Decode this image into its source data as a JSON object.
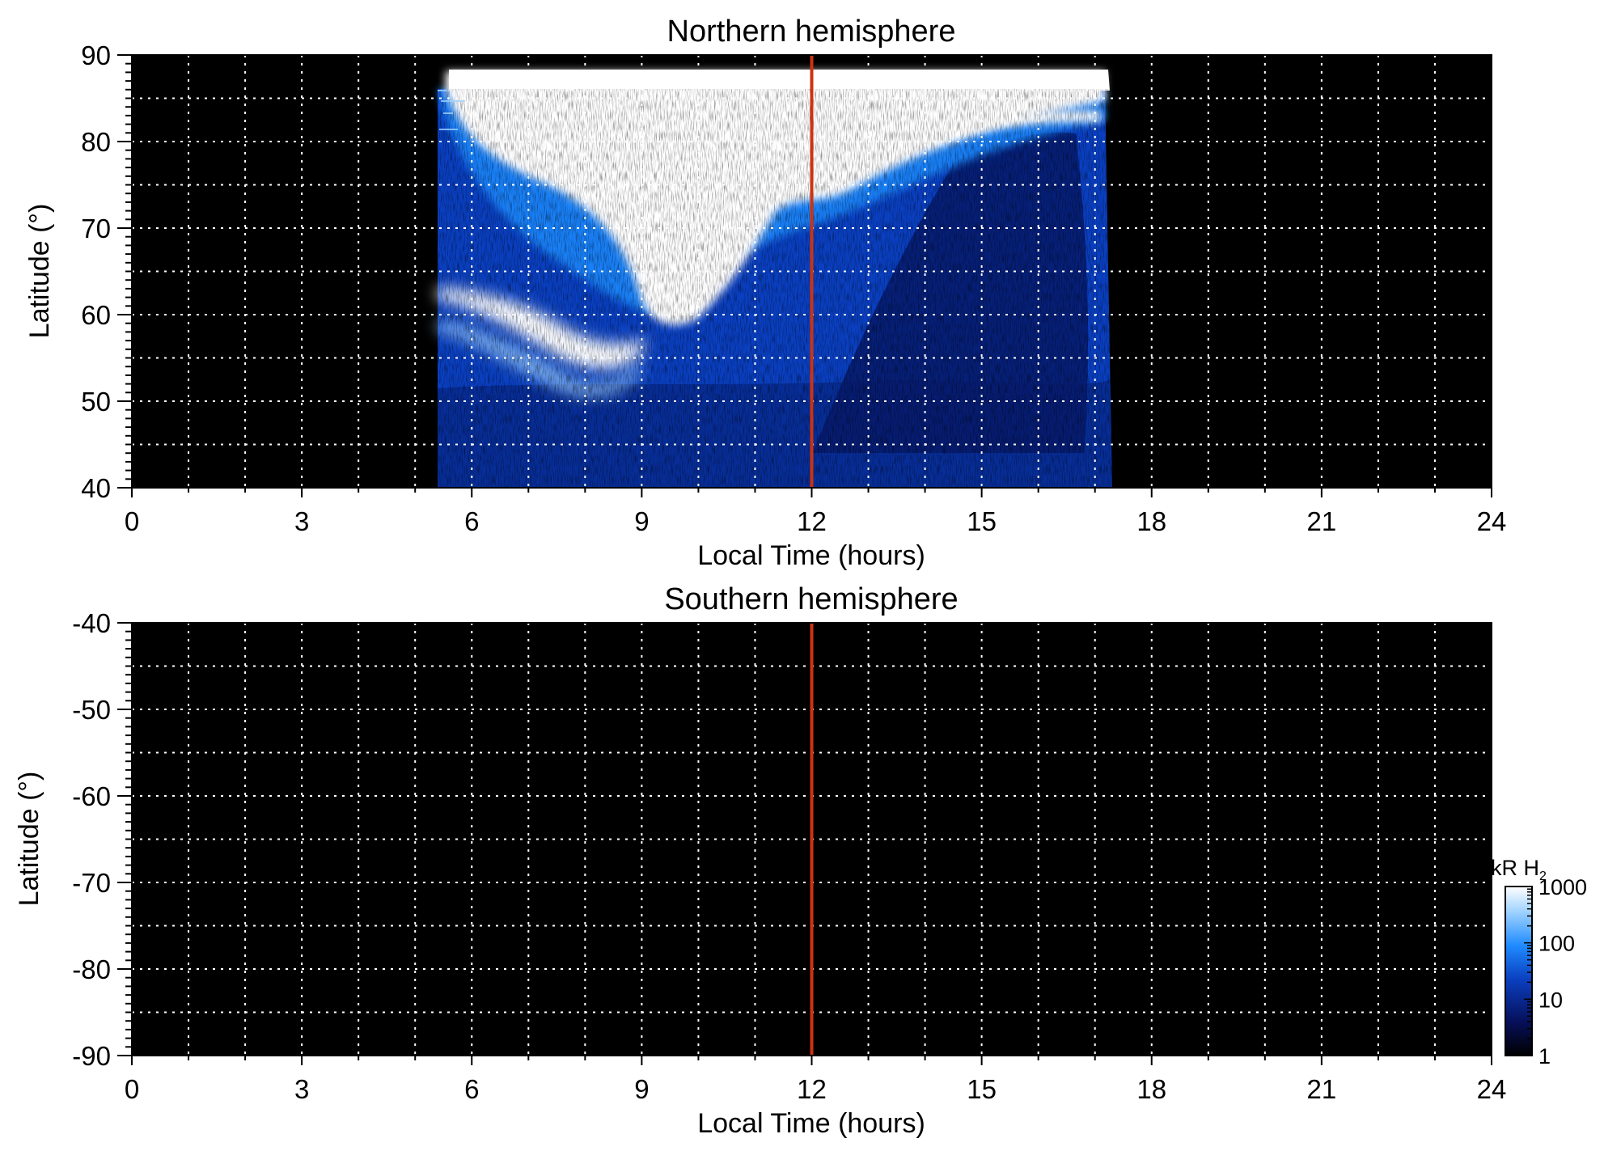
{
  "chart_data": [
    {
      "type": "heatmap",
      "title": "Northern hemisphere",
      "xlabel": "Local Time (hours)",
      "ylabel": "Latitude (°)",
      "xlim": [
        0,
        24
      ],
      "ylim": [
        40,
        90
      ],
      "xticks": [
        "0",
        "3",
        "6",
        "9",
        "12",
        "15",
        "18",
        "21",
        "24"
      ],
      "yticks": [
        "40",
        "50",
        "60",
        "70",
        "80",
        "90"
      ],
      "grid": true,
      "background": "#000000",
      "grid_color": "#ffffff",
      "noon_line": {
        "x": 12,
        "color": "#cc3311"
      },
      "emission_coverage": {
        "local_time_start": 5.4,
        "local_time_end": 17.2,
        "latitude_max": 88
      },
      "features": [
        {
          "name": "saturated polar region",
          "level_kR": 1000,
          "local_time_range": [
            5.4,
            17.2
          ],
          "latitude_range": [
            55,
            88
          ]
        },
        {
          "name": "bright band",
          "level_kR": 1000,
          "local_time_range": [
            5.4,
            9.0
          ],
          "latitude_range": [
            52,
            62
          ]
        },
        {
          "name": "diffuse emission",
          "level_kR": 100,
          "local_time_range": [
            5.4,
            17.2
          ],
          "latitude_range": [
            40,
            75
          ]
        }
      ]
    },
    {
      "type": "heatmap",
      "title": "Southern hemisphere",
      "xlabel": "Local Time (hours)",
      "ylabel": "Latitude (°)",
      "xlim": [
        0,
        24
      ],
      "ylim": [
        -90,
        -40
      ],
      "xticks": [
        "0",
        "3",
        "6",
        "9",
        "12",
        "15",
        "18",
        "21",
        "24"
      ],
      "yticks": [
        "-40",
        "-50",
        "-60",
        "-70",
        "-80",
        "-90"
      ],
      "grid": true,
      "background": "#000000",
      "grid_color": "#ffffff",
      "noon_line": {
        "x": 12,
        "color": "#cc3311"
      },
      "features": []
    }
  ],
  "colorbar": {
    "label": "kR H",
    "label_sub": "2",
    "scale": "log",
    "range": [
      1,
      1000
    ],
    "ticks": [
      "1",
      "10",
      "100",
      "1000"
    ],
    "colors": [
      "#000000",
      "#06105a",
      "#0a3fc0",
      "#1f8bff",
      "#9fd2ff",
      "#ffffff"
    ]
  }
}
